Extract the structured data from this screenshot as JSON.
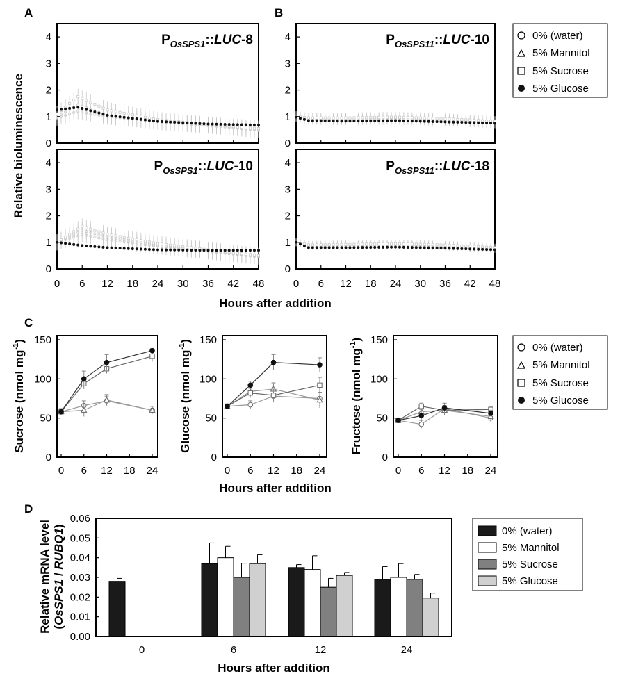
{
  "panels": {
    "a": "A",
    "b": "B",
    "c": "C",
    "d": "D"
  },
  "colors": {
    "glucose": "#111111",
    "sucrose": "#888888",
    "mannitol": "#ffffff",
    "water": "#111111",
    "lum_light": "#c9c9c9"
  },
  "lum": {
    "ylabel": "Relative bioluminescence",
    "xlabel": "Hours after addition",
    "xticks": [
      "0",
      "6",
      "12",
      "18",
      "24",
      "30",
      "36",
      "42",
      "48"
    ],
    "yticks": [
      "0",
      "1",
      "2",
      "3",
      "4"
    ],
    "plots": [
      {
        "prefix": "P",
        "sub": "OsSPS1",
        "sep": "::",
        "gene": "LUC",
        "suffix": "-8"
      },
      {
        "prefix": "P",
        "sub": "OsSPS11",
        "sep": "::",
        "gene": "LUC",
        "suffix": "-10"
      },
      {
        "prefix": "P",
        "sub": "OsSPS1",
        "sep": "::",
        "gene": "LUC",
        "suffix": "-10"
      },
      {
        "prefix": "P",
        "sub": "OsSPS11",
        "sep": "::",
        "gene": "LUC",
        "suffix": "-18"
      }
    ],
    "legend": [
      "0% (water)",
      "5% Mannitol",
      "5% Sucrose",
      "5% Glucose"
    ]
  },
  "sugar": {
    "xlabel": "Hours after addition",
    "unit": "(nmol mg",
    "unit_exp": "-1",
    "unit_close": ")",
    "legend": [
      "0% (water)",
      "5% Mannitol",
      "5% Sucrose",
      "5% Glucose"
    ],
    "names": [
      "Sucrose",
      "Glucose",
      "Fructose"
    ]
  },
  "mrna": {
    "ylabel_line1": "Relative mRNA level",
    "ylabel_line2_a": "(",
    "ylabel_line2_b": "OsSPS1",
    "ylabel_line2_c": " / ",
    "ylabel_line2_d": "RUBQ1",
    "ylabel_line2_e": ")",
    "xlabel": "Hours after addition",
    "legend": [
      "0% (water)",
      "5% Mannitol",
      "5% Sucrose",
      "5% Glucose"
    ]
  },
  "chart_data": [
    {
      "id": "A1",
      "type": "line",
      "title": "POsSPS1::LUC-8",
      "xlabel": "Hours after addition",
      "ylabel": "Relative bioluminescence",
      "xlim": [
        0,
        48
      ],
      "ylim": [
        0,
        4.5
      ],
      "x_knots": [
        0,
        5,
        12,
        24,
        36,
        48
      ],
      "series": [
        {
          "name": "5% Glucose",
          "values": [
            1.25,
            1.35,
            1.05,
            0.82,
            0.72,
            0.68
          ],
          "err": 0.06
        },
        {
          "name": "5% Sucrose",
          "values": [
            1.1,
            1.75,
            1.25,
            0.88,
            0.7,
            0.55
          ],
          "err": 0.3
        },
        {
          "name": "5% Mannitol",
          "values": [
            1.0,
            1.45,
            1.05,
            0.8,
            0.66,
            0.5
          ],
          "err": 0.3
        },
        {
          "name": "0% (water)",
          "values": [
            0.95,
            1.2,
            1.0,
            0.82,
            0.68,
            0.48
          ],
          "err": 0.3
        }
      ]
    },
    {
      "id": "B1",
      "type": "line",
      "title": "POsSPS11::LUC-10",
      "xlabel": "Hours after addition",
      "ylabel": "Relative bioluminescence",
      "xlim": [
        0,
        48
      ],
      "ylim": [
        0,
        4.5
      ],
      "x_knots": [
        0,
        3,
        12,
        24,
        36,
        48
      ],
      "series": [
        {
          "name": "5% Glucose",
          "values": [
            0.98,
            0.85,
            0.83,
            0.85,
            0.8,
            0.75
          ],
          "err": 0.05
        },
        {
          "name": "5% Sucrose",
          "values": [
            1.0,
            0.95,
            0.95,
            0.98,
            0.92,
            0.82
          ],
          "err": 0.2
        },
        {
          "name": "5% Mannitol",
          "values": [
            1.0,
            0.92,
            0.9,
            0.92,
            0.88,
            0.78
          ],
          "err": 0.2
        },
        {
          "name": "0% (water)",
          "values": [
            1.0,
            0.9,
            0.88,
            0.9,
            0.85,
            0.76
          ],
          "err": 0.2
        }
      ]
    },
    {
      "id": "A2",
      "type": "line",
      "title": "POsSPS1::LUC-10",
      "xlabel": "Hours after addition",
      "ylabel": "Relative bioluminescence",
      "xlim": [
        0,
        48
      ],
      "ylim": [
        0,
        4.5
      ],
      "x_knots": [
        0,
        6,
        12,
        24,
        36,
        48
      ],
      "series": [
        {
          "name": "5% Glucose",
          "values": [
            1.0,
            0.88,
            0.8,
            0.72,
            0.7,
            0.7
          ],
          "err": 0.05
        },
        {
          "name": "5% Sucrose",
          "values": [
            1.0,
            1.6,
            1.3,
            0.95,
            0.72,
            0.5
          ],
          "err": 0.3
        },
        {
          "name": "5% Mannitol",
          "values": [
            1.0,
            1.45,
            1.2,
            0.88,
            0.68,
            0.48
          ],
          "err": 0.3
        },
        {
          "name": "0% (water)",
          "values": [
            1.0,
            1.3,
            1.1,
            0.85,
            0.66,
            0.45
          ],
          "err": 0.3
        }
      ]
    },
    {
      "id": "B2",
      "type": "line",
      "title": "POsSPS11::LUC-18",
      "xlabel": "Hours after addition",
      "ylabel": "Relative bioluminescence",
      "xlim": [
        0,
        48
      ],
      "ylim": [
        0,
        4.5
      ],
      "x_knots": [
        0,
        3,
        12,
        24,
        36,
        48
      ],
      "series": [
        {
          "name": "5% Glucose",
          "values": [
            1.0,
            0.8,
            0.8,
            0.82,
            0.78,
            0.72
          ],
          "err": 0.05
        },
        {
          "name": "5% Sucrose",
          "values": [
            1.0,
            0.9,
            0.92,
            0.95,
            0.9,
            0.8
          ],
          "err": 0.15
        },
        {
          "name": "5% Mannitol",
          "values": [
            1.0,
            0.88,
            0.9,
            0.92,
            0.88,
            0.78
          ],
          "err": 0.15
        },
        {
          "name": "0% (water)",
          "values": [
            1.0,
            0.86,
            0.88,
            0.9,
            0.85,
            0.76
          ],
          "err": 0.15
        }
      ]
    },
    {
      "id": "C1",
      "type": "line",
      "title": "",
      "xlabel": "Hours after addition",
      "ylabel": "Sucrose (nmol mg-1)",
      "x": [
        0,
        6,
        12,
        24
      ],
      "xticks": [
        0,
        6,
        12,
        18,
        24
      ],
      "xlim": [
        0,
        24
      ],
      "ylim": [
        0,
        150
      ],
      "yticks": [
        0,
        50,
        100,
        150
      ],
      "series": [
        {
          "name": "0% (water)",
          "values": [
            58,
            66,
            72,
            60
          ],
          "err": [
            4,
            6,
            6,
            5
          ]
        },
        {
          "name": "5% Mannitol",
          "values": [
            58,
            60,
            73,
            60
          ],
          "err": [
            4,
            8,
            7,
            5
          ]
        },
        {
          "name": "5% Sucrose",
          "values": [
            58,
            94,
            113,
            129
          ],
          "err": [
            4,
            7,
            6,
            7
          ]
        },
        {
          "name": "5% Glucose",
          "values": [
            58,
            100,
            121,
            136
          ],
          "err": [
            4,
            10,
            10,
            3
          ]
        }
      ]
    },
    {
      "id": "C2",
      "type": "line",
      "title": "",
      "xlabel": "Hours after addition",
      "ylabel": "Glucose (nmol mg-1)",
      "x": [
        0,
        6,
        12,
        24
      ],
      "xticks": [
        0,
        6,
        12,
        18,
        24
      ],
      "xlim": [
        0,
        24
      ],
      "ylim": [
        0,
        150
      ],
      "yticks": [
        0,
        50,
        100,
        150
      ],
      "series": [
        {
          "name": "0% (water)",
          "values": [
            65,
            67,
            78,
            75
          ],
          "err": [
            3,
            5,
            8,
            8
          ]
        },
        {
          "name": "5% Mannitol",
          "values": [
            65,
            84,
            87,
            73
          ],
          "err": [
            3,
            6,
            8,
            10
          ]
        },
        {
          "name": "5% Sucrose",
          "values": [
            65,
            82,
            79,
            92
          ],
          "err": [
            3,
            6,
            8,
            10
          ]
        },
        {
          "name": "5% Glucose",
          "values": [
            65,
            92,
            121,
            118
          ],
          "err": [
            3,
            5,
            10,
            9
          ]
        }
      ]
    },
    {
      "id": "C3",
      "type": "line",
      "title": "",
      "xlabel": "Hours after addition",
      "ylabel": "Fructose (nmol mg-1)",
      "x": [
        0,
        6,
        12,
        24
      ],
      "xticks": [
        0,
        6,
        12,
        18,
        24
      ],
      "xlim": [
        0,
        24
      ],
      "ylim": [
        0,
        150
      ],
      "yticks": [
        0,
        50,
        100,
        150
      ],
      "series": [
        {
          "name": "0% (water)",
          "values": [
            47,
            42,
            62,
            50
          ],
          "err": [
            3,
            5,
            6,
            5
          ]
        },
        {
          "name": "5% Mannitol",
          "values": [
            47,
            58,
            60,
            52
          ],
          "err": [
            3,
            5,
            6,
            5
          ]
        },
        {
          "name": "5% Sucrose",
          "values": [
            47,
            65,
            60,
            61
          ],
          "err": [
            3,
            4,
            6,
            4
          ]
        },
        {
          "name": "5% Glucose",
          "values": [
            47,
            53,
            63,
            56
          ],
          "err": [
            3,
            8,
            6,
            4
          ]
        }
      ]
    },
    {
      "id": "D",
      "type": "bar",
      "title": "",
      "xlabel": "Hours after addition",
      "ylabel": "Relative mRNA level (OsSPS1 / RUBQ1)",
      "categories": [
        "0",
        "6",
        "12",
        "24"
      ],
      "ylim": [
        0,
        0.06
      ],
      "yticks": [
        "0.00",
        "0.01",
        "0.02",
        "0.03",
        "0.04",
        "0.05",
        "0.06"
      ],
      "series": [
        {
          "name": "0% (water)",
          "color": "#1a1a1a",
          "values": [
            0.028,
            0.037,
            0.035,
            0.029
          ],
          "err": [
            0.0015,
            0.0105,
            0.0015,
            0.0065
          ]
        },
        {
          "name": "5% Mannitol",
          "color": "#ffffff",
          "values": [
            null,
            0.04,
            0.034,
            0.03
          ],
          "err": [
            null,
            0.0058,
            0.007,
            0.007
          ]
        },
        {
          "name": "5% Sucrose",
          "color": "#808080",
          "values": [
            null,
            0.03,
            0.025,
            0.029
          ],
          "err": [
            null,
            0.0072,
            0.0045,
            0.0025
          ]
        },
        {
          "name": "5% Glucose",
          "color": "#d0d0d0",
          "values": [
            null,
            0.037,
            0.031,
            0.0195
          ],
          "err": [
            null,
            0.0045,
            0.0015,
            0.0025
          ]
        }
      ]
    }
  ]
}
